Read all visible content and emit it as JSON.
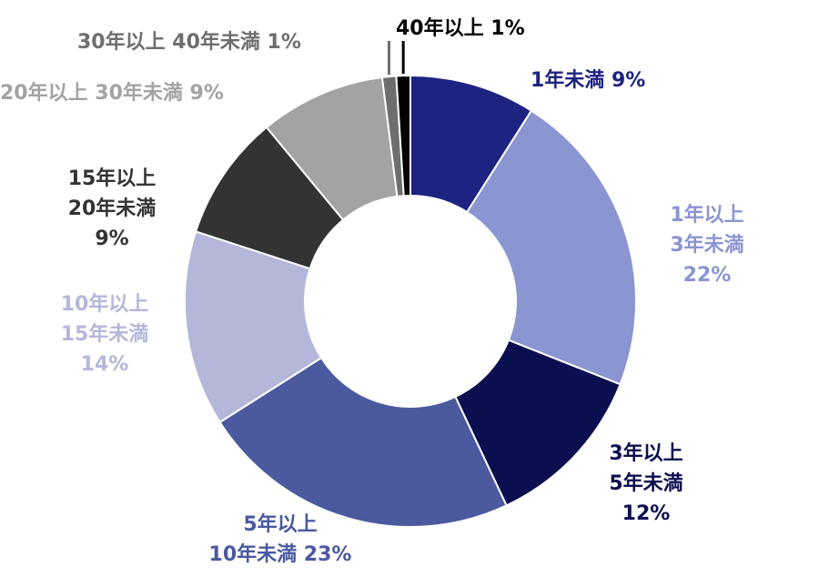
{
  "chart_data": {
    "type": "pie",
    "title": "",
    "series": [
      {
        "label_lines": [
          "1年未満 9%"
        ],
        "value": 9,
        "color": "#1e2382"
      },
      {
        "label_lines": [
          "1年以上",
          "3年未満",
          "22%"
        ],
        "value": 22,
        "color": "#8b95d2"
      },
      {
        "label_lines": [
          "3年以上",
          "5年未満",
          "12%"
        ],
        "value": 12,
        "color": "#0b0f4f"
      },
      {
        "label_lines": [
          "5年以上",
          "10年未満 23%"
        ],
        "value": 23,
        "color": "#4b5a9f"
      },
      {
        "label_lines": [
          "10年以上",
          "15年未満",
          "14%"
        ],
        "value": 14,
        "color": "#b5b7da"
      },
      {
        "label_lines": [
          "15年以上",
          "20年未満",
          "9%"
        ],
        "value": 9,
        "color": "#333333"
      },
      {
        "label_lines": [
          "20年以上 30年未満 9%"
        ],
        "value": 9,
        "color": "#a3a3a3"
      },
      {
        "label_lines": [
          "30年以上 40年未満 1%"
        ],
        "value": 1,
        "color": "#6e6e6e"
      },
      {
        "label_lines": [
          "40年以上 1%"
        ],
        "value": 1,
        "color": "#000000"
      }
    ],
    "label_colors": [
      "#1e2382",
      "#8b95d2",
      "#0b0f4f",
      "#4b5a9f",
      "#b5b7da",
      "#333333",
      "#a3a3a3",
      "#6e6e6e",
      "#000000"
    ],
    "donut": true,
    "legend": "none"
  }
}
